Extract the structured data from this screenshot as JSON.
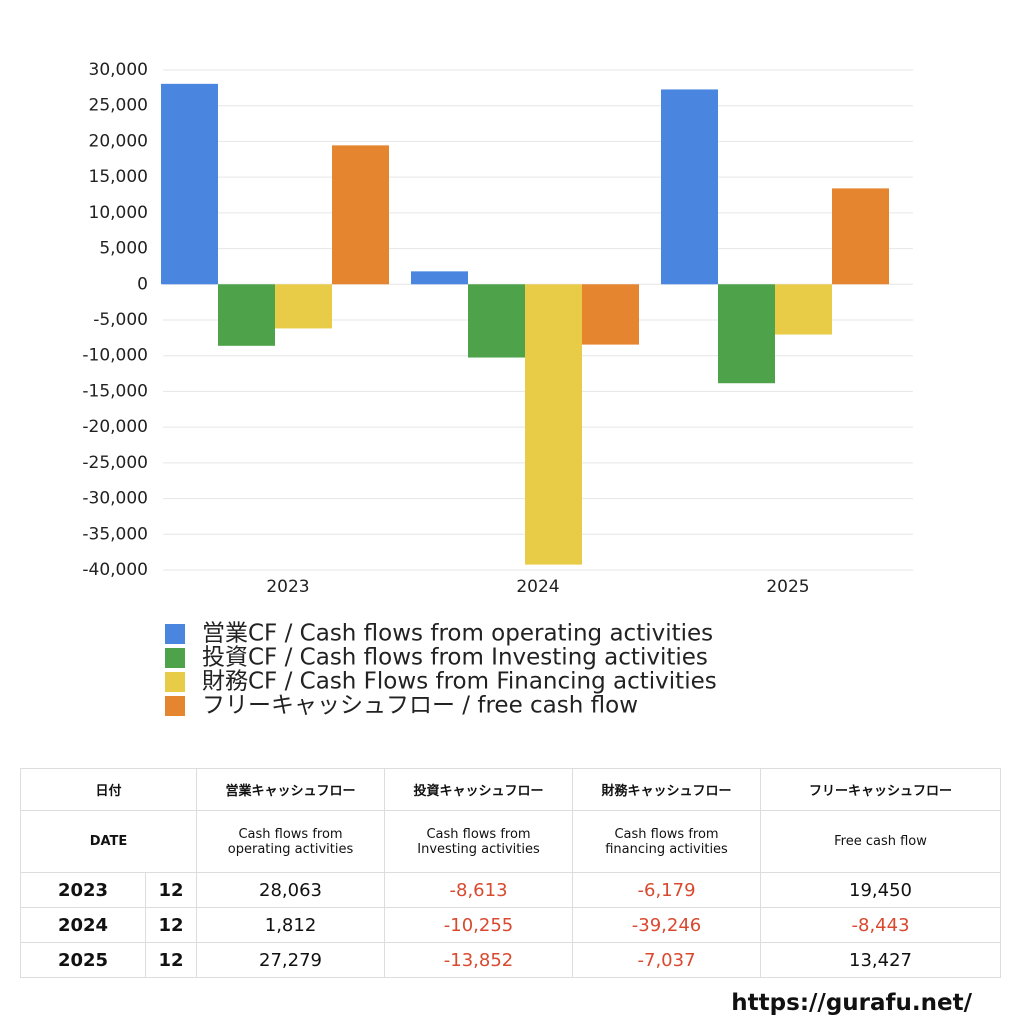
{
  "chart_data": {
    "type": "bar",
    "categories": [
      "2023",
      "2024",
      "2025"
    ],
    "series": [
      {
        "name": "営業CF / Cash flows from operating activities",
        "color": "#4a86e0",
        "values": [
          28063,
          1812,
          27279
        ]
      },
      {
        "name": "投資CF / Cash flows from Investing activities",
        "color": "#4ea24a",
        "values": [
          -8613,
          -10255,
          -13852
        ]
      },
      {
        "name": "財務CF / Cash Flows from Financing activities",
        "color": "#e8cc48",
        "values": [
          -6179,
          -39246,
          -7037
        ]
      },
      {
        "name": "フリーキャッシュフロー / free cash flow",
        "color": "#e5852f",
        "values": [
          19450,
          -8443,
          13427
        ]
      }
    ],
    "ylim": [
      -40000,
      30000
    ],
    "yticks": [
      {
        "value": -40000,
        "label": "-40,000"
      },
      {
        "value": -35000,
        "label": "-35,000"
      },
      {
        "value": -30000,
        "label": "-30,000"
      },
      {
        "value": -25000,
        "label": "-25,000"
      },
      {
        "value": -20000,
        "label": "-20,000"
      },
      {
        "value": -15000,
        "label": "-15,000"
      },
      {
        "value": -10000,
        "label": "-10,000"
      },
      {
        "value": -5000,
        "label": "-5,000"
      },
      0,
      {
        "value": 5000,
        "label": "5,000"
      },
      {
        "value": 10000,
        "label": "10,000"
      },
      {
        "value": 15000,
        "label": "15,000"
      },
      {
        "value": 20000,
        "label": "20,000"
      },
      {
        "value": 25000,
        "label": "25,000"
      },
      {
        "value": 30000,
        "label": "30,000"
      }
    ],
    "grid": true
  },
  "table": {
    "header": [
      [
        "日付",
        "営業キャッシュフロー",
        "投資キャッシュフロー",
        "財務キャッシュフロー",
        "フリーキャッシュフロー"
      ],
      [
        [
          "DATE"
        ],
        [
          "Cash flows from",
          "operating activities"
        ],
        [
          "Cash flows from",
          "Investing activities"
        ],
        [
          "Cash flows from",
          "financing activities"
        ],
        [
          "Free cash flow"
        ]
      ]
    ],
    "rows": [
      [
        "2023",
        "12",
        "28,063",
        "-8,613",
        "-6,179",
        "19,450"
      ],
      [
        "2024",
        "12",
        "1,812",
        "-10,255",
        "-39,246",
        "-8,443"
      ],
      [
        "2025",
        "12",
        "27,279",
        "-13,852",
        "-7,037",
        "13,427"
      ]
    ]
  },
  "footer": "https://gurafu.net/"
}
